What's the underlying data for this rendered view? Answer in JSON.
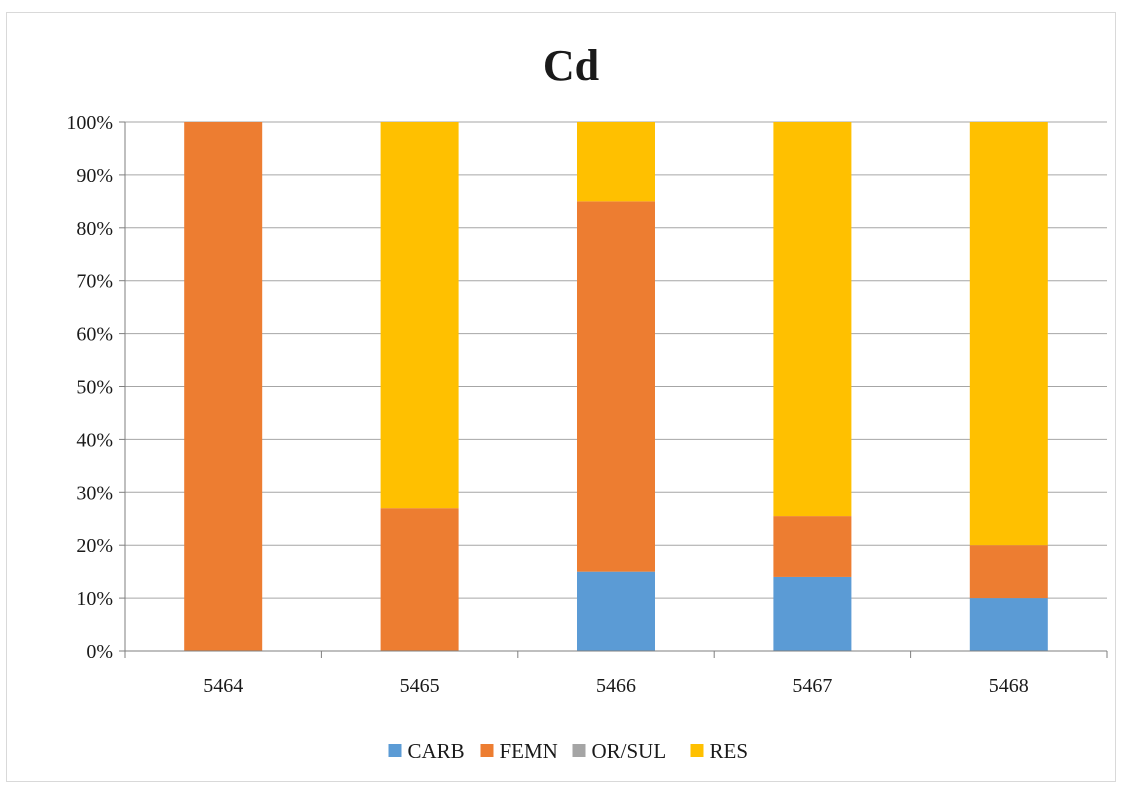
{
  "chart_data": {
    "type": "bar",
    "stacked": true,
    "stack_mode": "percent",
    "title": "Cd",
    "xlabel": "",
    "ylabel": "",
    "categories": [
      "5464",
      "5465",
      "5466",
      "5467",
      "5468"
    ],
    "ylim": [
      0,
      100
    ],
    "yticks": [
      "0%",
      "10%",
      "20%",
      "30%",
      "40%",
      "50%",
      "60%",
      "70%",
      "80%",
      "90%",
      "100%"
    ],
    "grid": true,
    "legend_position": "bottom",
    "series": [
      {
        "name": "CARB",
        "color": "#5b9bd5",
        "values": [
          0,
          0,
          15,
          14,
          10
        ]
      },
      {
        "name": "FEMN",
        "color": "#ed7d31",
        "values": [
          100,
          27,
          70,
          11.5,
          10
        ]
      },
      {
        "name": "OR/SUL",
        "color": "#a5a5a5",
        "values": [
          0,
          0,
          0,
          0,
          0
        ]
      },
      {
        "name": "RES",
        "color": "#ffc000",
        "values": [
          0,
          73,
          15,
          74.5,
          80
        ]
      }
    ]
  }
}
